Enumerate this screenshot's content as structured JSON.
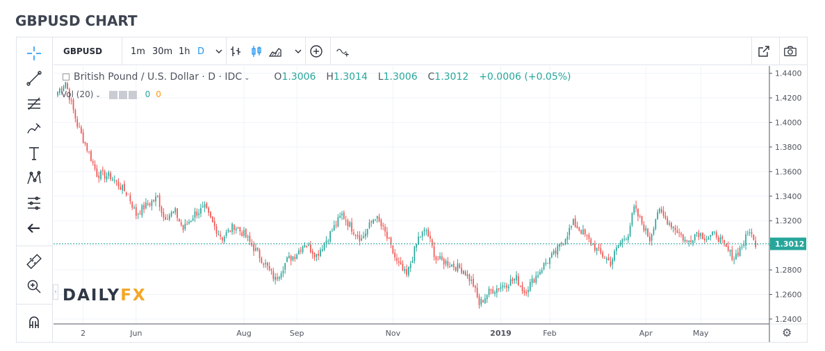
{
  "page_title": "GBPUSD CHART",
  "toolbar": {
    "symbol": "GBPUSD",
    "intervals": [
      "1m",
      "30m",
      "1h",
      "D"
    ],
    "active_interval": "D"
  },
  "legend": {
    "instrument": "British Pound / U.S. Dollar · D · IDC",
    "open_label": "O",
    "open": "1.3006",
    "high_label": "H",
    "high": "1.3014",
    "low_label": "L",
    "low": "1.3006",
    "close_label": "C",
    "close": "1.3012",
    "change": "+0.0006 (+0.05%)",
    "volume_label": "Vol (20)",
    "volume_values": [
      "0",
      "0"
    ]
  },
  "watermark": {
    "part1": "DAILY",
    "part2": "FX"
  },
  "colors": {
    "up": "#26a69a",
    "down": "#ef5350",
    "accent": "#2196f3",
    "price_line": "#26a69a"
  },
  "chart_data": {
    "type": "candlestick",
    "title": "GBPUSD CHART",
    "instrument": "British Pound / U.S. Dollar",
    "ylim": [
      1.236,
      1.446
    ],
    "y_ticks": [
      "1.2400",
      "1.2600",
      "1.2800",
      "1.3000",
      "1.3200",
      "1.3400",
      "1.3600",
      "1.3800",
      "1.4000",
      "1.4200",
      "1.4400"
    ],
    "x_ticks": [
      "2",
      "Jun",
      "Aug",
      "Sep",
      "Nov",
      "2019",
      "Feb",
      "Apr",
      "May"
    ],
    "last_price": "1.3012",
    "grid": true,
    "anchors": [
      {
        "i": 0,
        "v": 1.425
      },
      {
        "i": 4,
        "v": 1.433
      },
      {
        "i": 10,
        "v": 1.398
      },
      {
        "i": 16,
        "v": 1.375
      },
      {
        "i": 20,
        "v": 1.358
      },
      {
        "i": 27,
        "v": 1.356
      },
      {
        "i": 36,
        "v": 1.341
      },
      {
        "i": 40,
        "v": 1.325
      },
      {
        "i": 44,
        "v": 1.331
      },
      {
        "i": 51,
        "v": 1.339
      },
      {
        "i": 54,
        "v": 1.323
      },
      {
        "i": 60,
        "v": 1.327
      },
      {
        "i": 64,
        "v": 1.313
      },
      {
        "i": 70,
        "v": 1.326
      },
      {
        "i": 75,
        "v": 1.33
      },
      {
        "i": 80,
        "v": 1.315
      },
      {
        "i": 84,
        "v": 1.306
      },
      {
        "i": 90,
        "v": 1.316
      },
      {
        "i": 95,
        "v": 1.309
      },
      {
        "i": 104,
        "v": 1.289
      },
      {
        "i": 111,
        "v": 1.272
      },
      {
        "i": 117,
        "v": 1.288
      },
      {
        "i": 121,
        "v": 1.292
      },
      {
        "i": 126,
        "v": 1.302
      },
      {
        "i": 132,
        "v": 1.292
      },
      {
        "i": 138,
        "v": 1.307
      },
      {
        "i": 145,
        "v": 1.325
      },
      {
        "i": 150,
        "v": 1.314
      },
      {
        "i": 155,
        "v": 1.305
      },
      {
        "i": 162,
        "v": 1.324
      },
      {
        "i": 167,
        "v": 1.31
      },
      {
        "i": 173,
        "v": 1.286
      },
      {
        "i": 178,
        "v": 1.275
      },
      {
        "i": 184,
        "v": 1.306
      },
      {
        "i": 188,
        "v": 1.312
      },
      {
        "i": 193,
        "v": 1.289
      },
      {
        "i": 200,
        "v": 1.285
      },
      {
        "i": 207,
        "v": 1.28
      },
      {
        "i": 212,
        "v": 1.268
      },
      {
        "i": 215,
        "v": 1.252
      },
      {
        "i": 220,
        "v": 1.262
      },
      {
        "i": 228,
        "v": 1.268
      },
      {
        "i": 234,
        "v": 1.273
      },
      {
        "i": 238,
        "v": 1.262
      },
      {
        "i": 244,
        "v": 1.275
      },
      {
        "i": 249,
        "v": 1.286
      },
      {
        "i": 254,
        "v": 1.294
      },
      {
        "i": 259,
        "v": 1.307
      },
      {
        "i": 263,
        "v": 1.318
      },
      {
        "i": 268,
        "v": 1.31
      },
      {
        "i": 272,
        "v": 1.302
      },
      {
        "i": 277,
        "v": 1.293
      },
      {
        "i": 282,
        "v": 1.286
      },
      {
        "i": 286,
        "v": 1.3
      },
      {
        "i": 291,
        "v": 1.31
      },
      {
        "i": 294,
        "v": 1.33
      },
      {
        "i": 298,
        "v": 1.318
      },
      {
        "i": 302,
        "v": 1.305
      },
      {
        "i": 306,
        "v": 1.328
      },
      {
        "i": 311,
        "v": 1.32
      },
      {
        "i": 316,
        "v": 1.312
      },
      {
        "i": 321,
        "v": 1.302
      },
      {
        "i": 326,
        "v": 1.311
      },
      {
        "i": 331,
        "v": 1.306
      },
      {
        "i": 336,
        "v": 1.309
      },
      {
        "i": 341,
        "v": 1.297
      },
      {
        "i": 345,
        "v": 1.29
      },
      {
        "i": 350,
        "v": 1.302
      },
      {
        "i": 353,
        "v": 1.313
      },
      {
        "i": 355,
        "v": 1.303
      },
      {
        "i": 357,
        "v": 1.301
      }
    ],
    "n_bars": 358
  }
}
